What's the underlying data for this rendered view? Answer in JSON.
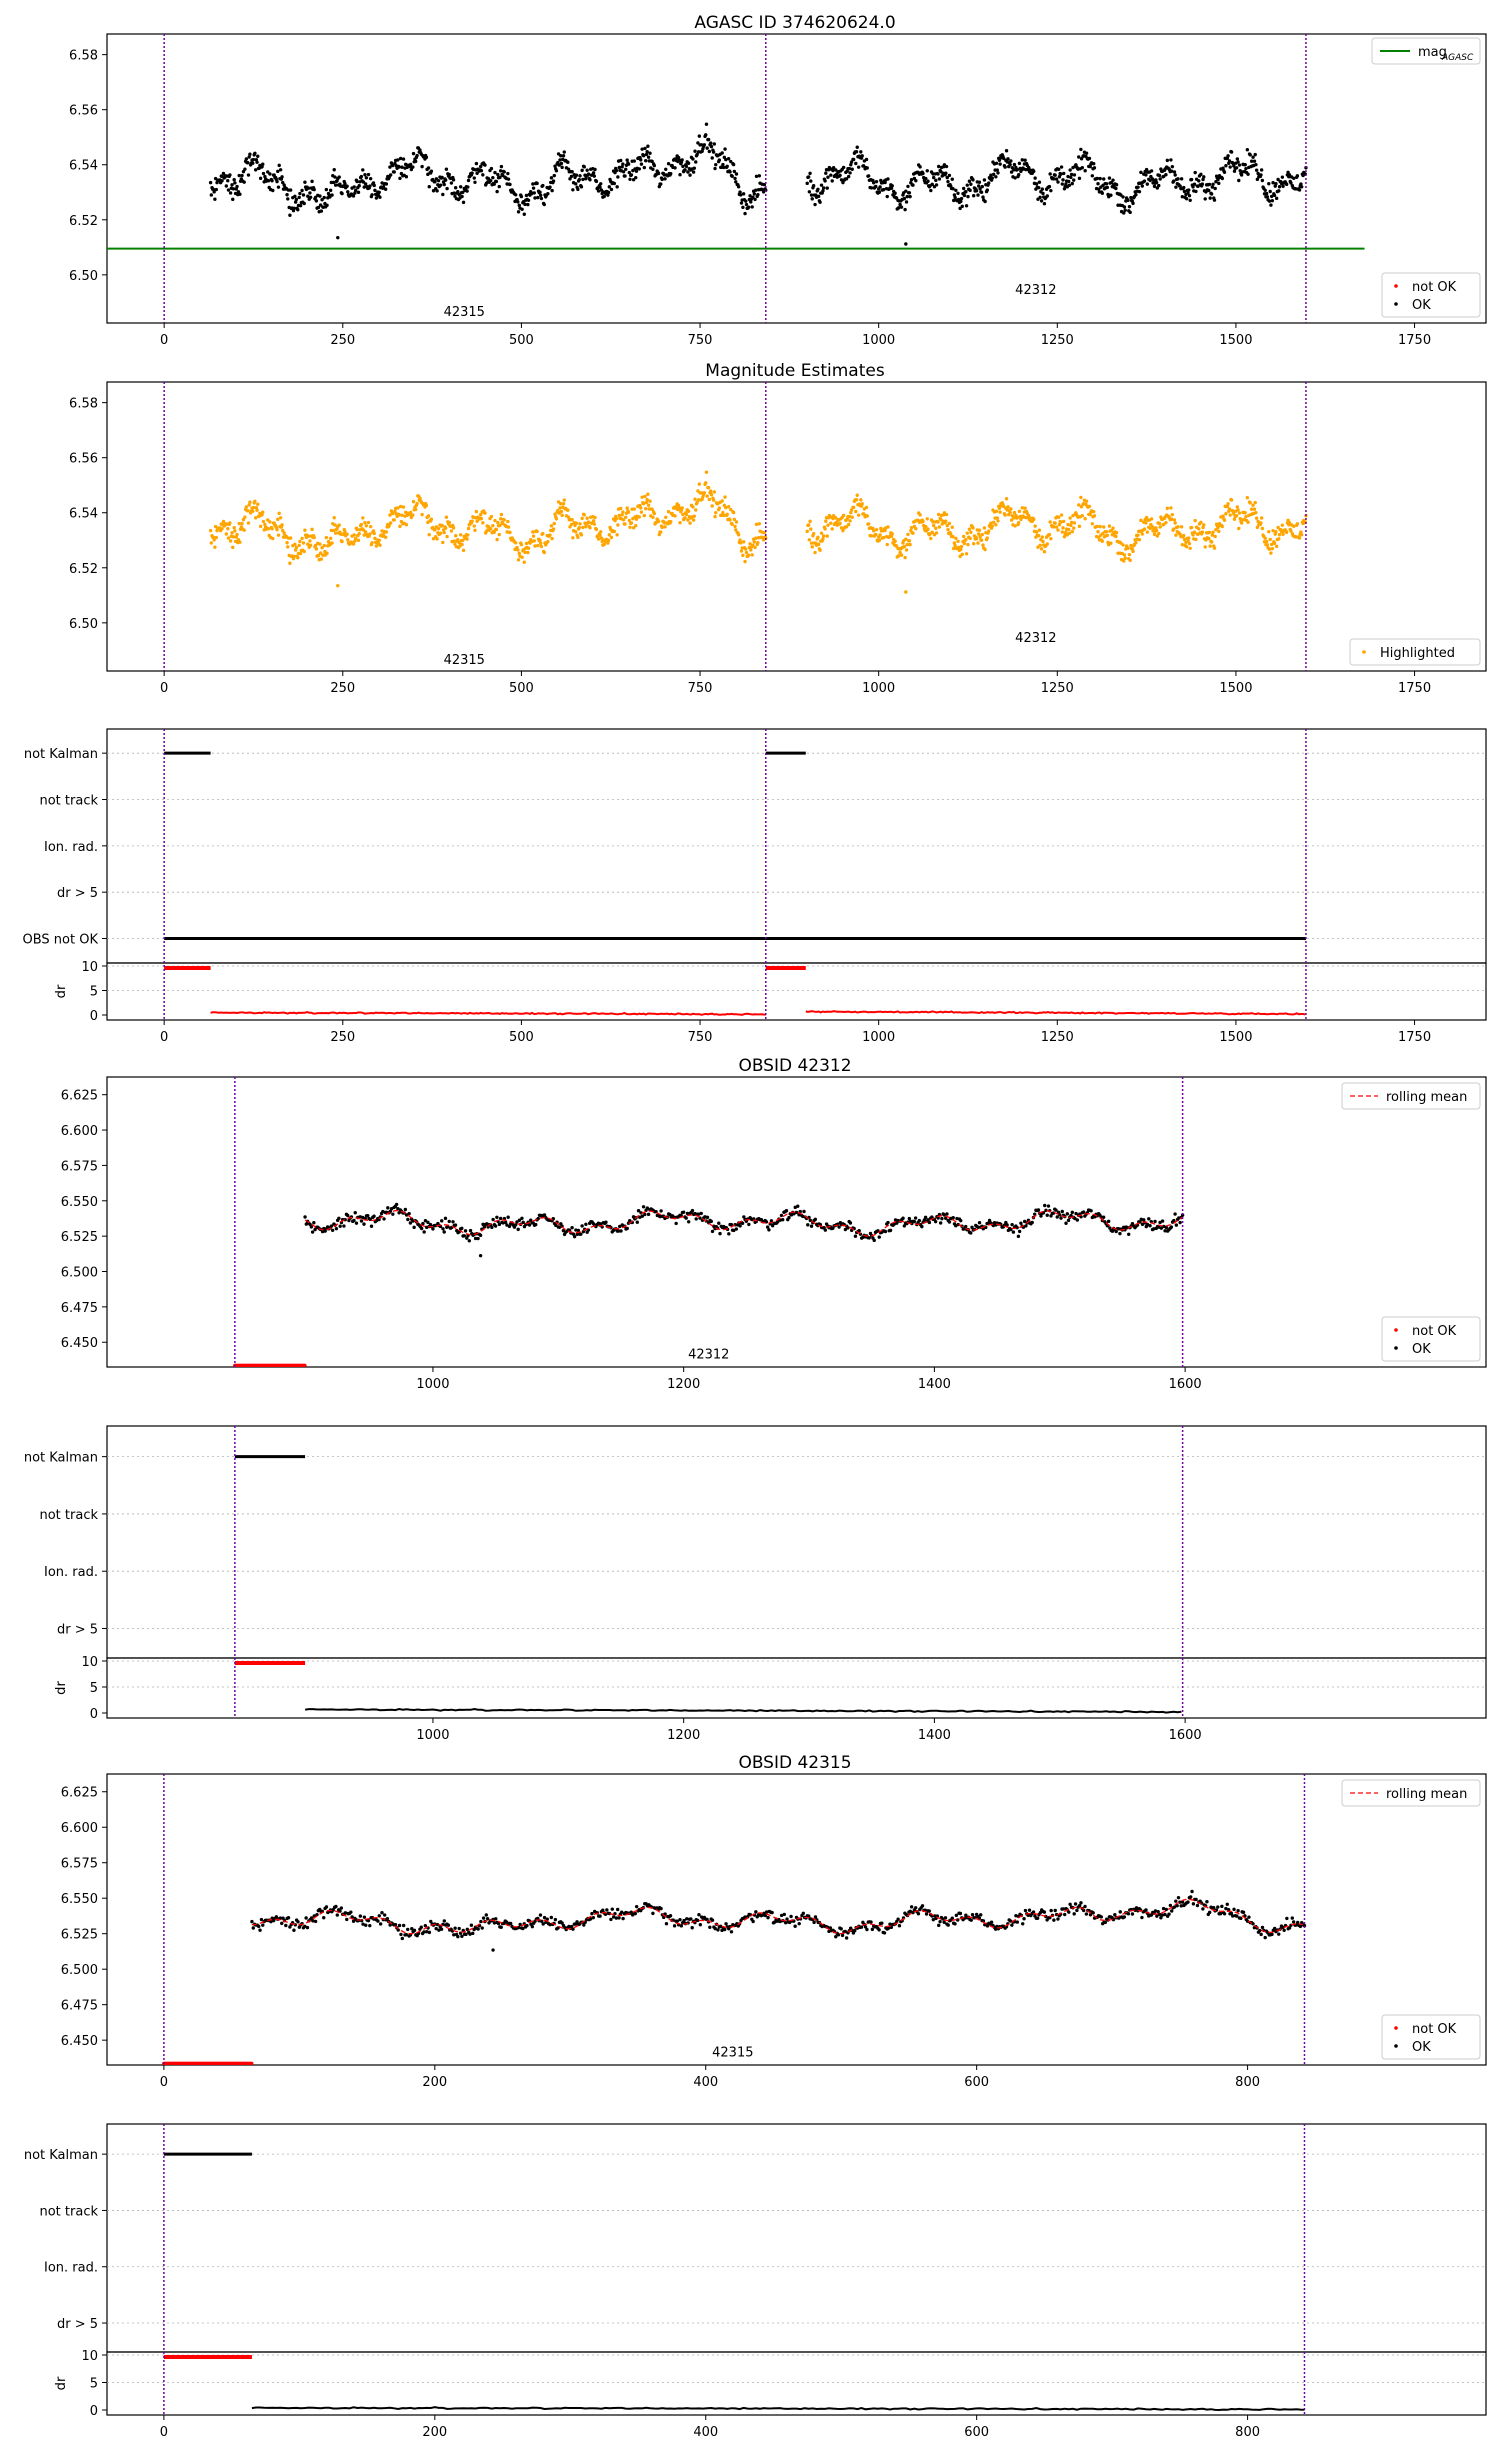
{
  "figure_title": "AGASC ID 374620624.0",
  "colors": {
    "ok": "#000000",
    "not_ok": "#ff0000",
    "highlight": "#ffa500",
    "agasc_line": "#008000",
    "vline": "#7000a0",
    "rolling": "#ff0000",
    "grid": "#b0b0b0"
  },
  "chart_data": [
    {
      "id": "p1",
      "type": "scatter",
      "title": "AGASC ID 374620624.0",
      "xlim": [
        -80,
        1850
      ],
      "ylim": [
        6.4825,
        6.5875
      ],
      "xticks": [
        0,
        250,
        500,
        750,
        1000,
        1250,
        1500,
        1750
      ],
      "xtick_labels": [
        "0",
        "250",
        "500",
        "750",
        "1000",
        "1250",
        "1500",
        "1750"
      ],
      "yticks": [
        6.5,
        6.52,
        6.54,
        6.56,
        6.58
      ],
      "ytick_labels": [
        "6.50",
        "6.52",
        "6.54",
        "6.56",
        "6.58"
      ],
      "vlines": [
        0,
        842,
        1598
      ],
      "hline": {
        "y": 6.5095,
        "x0": -80,
        "x1": 1680,
        "label": "mag",
        "sub": "AGASC"
      },
      "obsid_labels": [
        {
          "x": 420,
          "y": 6.485,
          "text": "42315"
        },
        {
          "x": 1220,
          "y": 6.493,
          "text": "42312"
        }
      ],
      "legend_bottom": [
        {
          "label": "not OK",
          "color": "not_ok"
        },
        {
          "label": "OK",
          "color": "ok"
        }
      ],
      "segments": [
        [
          65,
          842,
          0,
          "ok"
        ],
        [
          900,
          1598,
          20,
          "ok"
        ]
      ],
      "outliers": [
        [
          243,
          6.5135
        ],
        [
          1038,
          6.5112
        ]
      ]
    },
    {
      "id": "p2",
      "type": "scatter",
      "title": "Magnitude Estimates",
      "xlim": [
        -80,
        1850
      ],
      "ylim": [
        6.4825,
        6.5875
      ],
      "xticks": [
        0,
        250,
        500,
        750,
        1000,
        1250,
        1500,
        1750
      ],
      "xtick_labels": [
        "0",
        "250",
        "500",
        "750",
        "1000",
        "1250",
        "1500",
        "1750"
      ],
      "yticks": [
        6.5,
        6.52,
        6.54,
        6.56,
        6.58
      ],
      "ytick_labels": [
        "6.50",
        "6.52",
        "6.54",
        "6.56",
        "6.58"
      ],
      "vlines": [
        0,
        842,
        1598
      ],
      "obsid_labels": [
        {
          "x": 420,
          "y": 6.485,
          "text": "42315"
        },
        {
          "x": 1220,
          "y": 6.493,
          "text": "42312"
        }
      ],
      "legend_bottom": [
        {
          "label": "Highlighted",
          "color": "highlight"
        }
      ],
      "segments": [
        [
          65,
          842,
          0,
          "highlight"
        ],
        [
          900,
          1598,
          20,
          "highlight"
        ]
      ],
      "outliers": [
        [
          243,
          6.5135
        ],
        [
          1038,
          6.5112
        ]
      ]
    },
    {
      "id": "p3",
      "type": "flags",
      "xlim": [
        -80,
        1850
      ],
      "xticks": [
        0,
        250,
        500,
        750,
        1000,
        1250,
        1500,
        1750
      ],
      "xtick_labels": [
        "0",
        "250",
        "500",
        "750",
        "1000",
        "1250",
        "1500",
        "1750"
      ],
      "flag_rows": [
        "not Kalman",
        "not track",
        "Ion. rad.",
        "dr > 5",
        "OBS not OK"
      ],
      "flag_segments": [
        [
          0,
          0,
          65
        ],
        [
          0,
          842,
          898
        ],
        [
          4,
          0,
          1598
        ]
      ],
      "dr_ticks": [
        "0",
        "5",
        "10"
      ],
      "dr_ylabel": "dr",
      "vlines": [
        0,
        842,
        1598
      ],
      "dr_high": [
        [
          0,
          65
        ],
        [
          842,
          898
        ]
      ],
      "dr_low": [
        [
          65,
          842,
          0.5,
          "not_ok"
        ],
        [
          898,
          1598,
          0.7,
          "not_ok"
        ]
      ]
    },
    {
      "id": "p4",
      "type": "scatter",
      "title": "OBSID 42312",
      "xlim": [
        740,
        1840
      ],
      "ylim": [
        6.4325,
        6.6375
      ],
      "xticks": [
        1000,
        1200,
        1400,
        1600
      ],
      "xtick_labels": [
        "1000",
        "1200",
        "1400",
        "1600"
      ],
      "yticks": [
        6.45,
        6.475,
        6.5,
        6.525,
        6.55,
        6.575,
        6.6,
        6.625
      ],
      "ytick_labels": [
        "6.450",
        "6.475",
        "6.500",
        "6.525",
        "6.550",
        "6.575",
        "6.600",
        "6.625"
      ],
      "vlines": [
        842,
        1598
      ],
      "obsid_labels": [
        {
          "x": 1220,
          "y": 6.4385,
          "text": "42312"
        }
      ],
      "legend_top": [
        {
          "label": "rolling mean",
          "style": "dashed"
        }
      ],
      "legend_bottom": [
        {
          "label": "not OK",
          "color": "not_ok"
        },
        {
          "label": "OK",
          "color": "ok"
        }
      ],
      "segments": [
        [
          898,
          1598,
          20,
          "ok"
        ]
      ],
      "rolling": [
        [
          898,
          1598,
          20
        ]
      ],
      "bottom_band": [
        [
          842,
          898
        ]
      ],
      "outliers": [
        [
          1038,
          6.5112
        ]
      ]
    },
    {
      "id": "p5",
      "type": "flags",
      "xlim": [
        740,
        1840
      ],
      "xticks": [
        1000,
        1200,
        1400,
        1600
      ],
      "xtick_labels": [
        "1000",
        "1200",
        "1400",
        "1600"
      ],
      "flag_rows": [
        "not Kalman",
        "not track",
        "Ion. rad.",
        "dr > 5"
      ],
      "flag_segments": [
        [
          0,
          842,
          898
        ]
      ],
      "dr_ticks": [
        "0",
        "5",
        "10"
      ],
      "dr_ylabel": "dr",
      "vlines": [
        842,
        1598
      ],
      "dr_high": [
        [
          842,
          898
        ]
      ],
      "dr_low": [
        [
          898,
          1598,
          0.7,
          "ok"
        ]
      ]
    },
    {
      "id": "p6",
      "type": "scatter",
      "title": "OBSID 42315",
      "xlim": [
        -42,
        976
      ],
      "ylim": [
        6.4325,
        6.6375
      ],
      "xticks": [
        0,
        200,
        400,
        600,
        800
      ],
      "xtick_labels": [
        "0",
        "200",
        "400",
        "600",
        "800"
      ],
      "yticks": [
        6.45,
        6.475,
        6.5,
        6.525,
        6.55,
        6.575,
        6.6,
        6.625
      ],
      "ytick_labels": [
        "6.450",
        "6.475",
        "6.500",
        "6.525",
        "6.550",
        "6.575",
        "6.600",
        "6.625"
      ],
      "vlines": [
        0,
        842
      ],
      "obsid_labels": [
        {
          "x": 420,
          "y": 6.4385,
          "text": "42315"
        }
      ],
      "legend_top": [
        {
          "label": "rolling mean",
          "style": "dashed"
        }
      ],
      "legend_bottom": [
        {
          "label": "not OK",
          "color": "not_ok"
        },
        {
          "label": "OK",
          "color": "ok"
        }
      ],
      "segments": [
        [
          65,
          842,
          0,
          "ok"
        ]
      ],
      "rolling": [
        [
          65,
          842,
          0
        ]
      ],
      "bottom_band": [
        [
          0,
          65
        ]
      ],
      "outliers": [
        [
          243,
          6.5135
        ]
      ]
    },
    {
      "id": "p7",
      "type": "flags",
      "xlim": [
        -42,
        976
      ],
      "xticks": [
        0,
        200,
        400,
        600,
        800
      ],
      "xtick_labels": [
        "0",
        "200",
        "400",
        "600",
        "800"
      ],
      "flag_rows": [
        "not Kalman",
        "not track",
        "Ion. rad.",
        "dr > 5"
      ],
      "flag_segments": [
        [
          0,
          0,
          65
        ]
      ],
      "dr_ticks": [
        "0",
        "5",
        "10"
      ],
      "dr_ylabel": "dr",
      "vlines": [
        0,
        842
      ],
      "dr_high": [
        [
          0,
          65
        ]
      ],
      "dr_low": [
        [
          65,
          842,
          0.4,
          "ok"
        ]
      ]
    }
  ]
}
